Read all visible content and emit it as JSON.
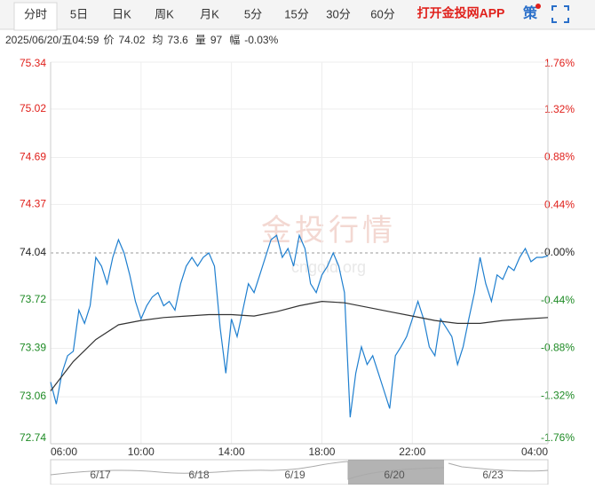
{
  "tabs": [
    "分时",
    "5日",
    "日K",
    "周K",
    "月K",
    "5分",
    "15分",
    "30分",
    "60分"
  ],
  "app_link": "打开金投网APP",
  "strategy_icon": "策",
  "info": [
    {
      "label": "2025/06/20/五04:59"
    },
    {
      "label": "价",
      "value": 74.02
    },
    {
      "label": "均",
      "value": 73.6
    },
    {
      "label": "量",
      "value": 97
    },
    {
      "label": "幅",
      "value": "-0.03%"
    }
  ],
  "watermark": [
    "金投行情",
    "cngold.org"
  ],
  "navigator": [
    "6/17",
    "6/18",
    "6/19",
    "6/20",
    "6/23"
  ],
  "chart_data": {
    "type": "line",
    "xlim": [
      "06:00",
      "04:00"
    ],
    "xticks": [
      "06:00",
      "10:00",
      "14:00",
      "18:00",
      "22:00",
      "04:00"
    ],
    "ylim": [
      72.74,
      75.34
    ],
    "yticks": [
      75.34,
      75.02,
      74.69,
      74.37,
      74.04,
      73.72,
      73.39,
      73.06,
      72.74
    ],
    "y2lim": [
      -1.76,
      1.76
    ],
    "y2ticks": [
      {
        "value": 1.76,
        "label": "1.76%"
      },
      {
        "value": 1.32,
        "label": "1.32%"
      },
      {
        "value": 0.88,
        "label": "0.88%"
      },
      {
        "value": 0.44,
        "label": "0.44%"
      },
      {
        "value": 0,
        "label": "0.00%"
      },
      {
        "value": -0.44,
        "label": "-0.44%"
      },
      {
        "value": -0.88,
        "label": "-0.88%"
      },
      {
        "value": -1.32,
        "label": "-1.32%"
      },
      {
        "value": -1.76,
        "label": "-1.76%"
      }
    ],
    "grid": true,
    "series": [
      {
        "color": "#1f7fcf",
        "x": [
          "06:00",
          "06:15",
          "06:30",
          "06:45",
          "07:00",
          "07:15",
          "07:30",
          "07:45",
          "08:00",
          "08:15",
          "08:30",
          "08:45",
          "09:00",
          "09:15",
          "09:30",
          "09:45",
          "10:00",
          "10:15",
          "10:30",
          "10:45",
          "11:00",
          "11:15",
          "11:30",
          "11:45",
          "12:00",
          "12:15",
          "12:30",
          "12:45",
          "13:00",
          "13:15",
          "13:30",
          "13:45",
          "14:00",
          "14:15",
          "14:30",
          "14:45",
          "15:00",
          "15:15",
          "15:30",
          "15:45",
          "16:00",
          "16:15",
          "16:30",
          "16:45",
          "17:00",
          "17:15",
          "17:30",
          "17:45",
          "18:00",
          "18:15",
          "18:30",
          "18:45",
          "19:00",
          "19:15",
          "19:30",
          "19:45",
          "20:00",
          "20:15",
          "20:30",
          "20:45",
          "21:00",
          "21:15",
          "21:30",
          "21:45",
          "22:00",
          "22:15",
          "22:30",
          "22:45",
          "23:00",
          "23:15",
          "23:30",
          "23:45",
          "00:00",
          "00:15",
          "00:30",
          "00:45",
          "01:00",
          "01:15",
          "01:30",
          "01:45",
          "02:00",
          "02:15",
          "02:30",
          "02:45",
          "03:00",
          "03:15",
          "03:30",
          "03:45",
          "04:00"
        ],
        "values": [
          73.16,
          73.01,
          73.22,
          73.34,
          73.37,
          73.65,
          73.56,
          73.68,
          74.01,
          73.95,
          73.83,
          74.01,
          74.13,
          74.04,
          73.89,
          73.71,
          73.59,
          73.68,
          73.74,
          73.77,
          73.68,
          73.71,
          73.65,
          73.83,
          73.95,
          74.01,
          73.95,
          74.01,
          74.04,
          73.95,
          73.53,
          73.22,
          73.59,
          73.47,
          73.65,
          73.83,
          73.77,
          73.89,
          74.01,
          74.13,
          74.16,
          74.01,
          74.07,
          73.95,
          74.16,
          74.07,
          73.83,
          73.77,
          73.89,
          73.95,
          74.04,
          73.95,
          73.77,
          72.92,
          73.22,
          73.4,
          73.28,
          73.34,
          73.22,
          73.1,
          72.98,
          73.34,
          73.4,
          73.47,
          73.59,
          73.71,
          73.59,
          73.4,
          73.34,
          73.59,
          73.53,
          73.47,
          73.28,
          73.4,
          73.59,
          73.77,
          74.01,
          73.83,
          73.71,
          73.89,
          73.86,
          73.95,
          73.92,
          74.01,
          74.07,
          73.98,
          74.01,
          74.01,
          74.02
        ]
      },
      {
        "color": "#333333",
        "x": [
          "06:00",
          "07:00",
          "08:00",
          "09:00",
          "10:00",
          "11:00",
          "12:00",
          "13:00",
          "14:00",
          "15:00",
          "16:00",
          "17:00",
          "18:00",
          "19:00",
          "20:00",
          "21:00",
          "22:00",
          "23:00",
          "00:00",
          "01:00",
          "02:00",
          "03:00",
          "04:00"
        ],
        "values": [
          73.1,
          73.3,
          73.45,
          73.55,
          73.58,
          73.6,
          73.61,
          73.62,
          73.62,
          73.61,
          73.64,
          73.68,
          73.71,
          73.7,
          73.67,
          73.64,
          73.61,
          73.58,
          73.56,
          73.56,
          73.58,
          73.59,
          73.6
        ]
      }
    ]
  }
}
